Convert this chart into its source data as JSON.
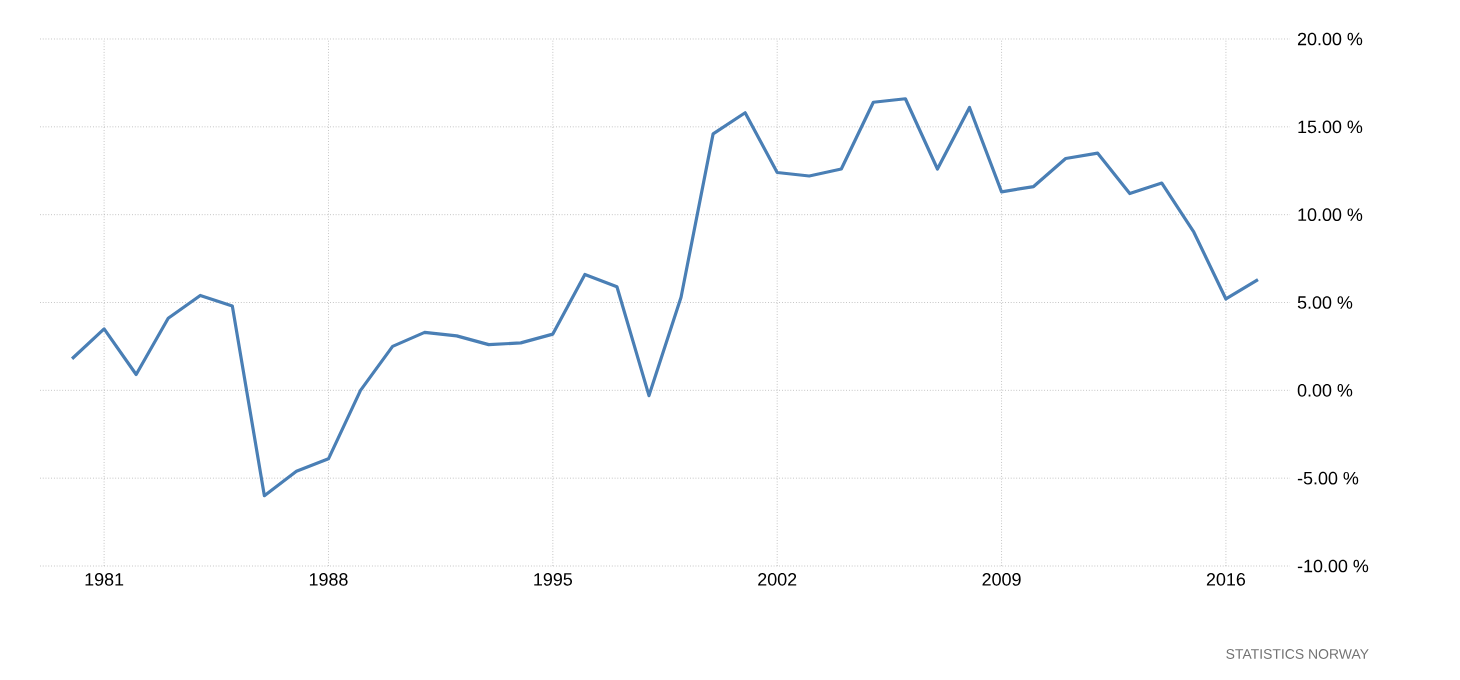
{
  "chart_data": {
    "type": "line",
    "x": [
      1980,
      1981,
      1982,
      1983,
      1984,
      1985,
      1986,
      1987,
      1988,
      1989,
      1990,
      1991,
      1992,
      1993,
      1994,
      1995,
      1996,
      1997,
      1998,
      1999,
      2000,
      2001,
      2002,
      2003,
      2004,
      2005,
      2006,
      2007,
      2008,
      2009,
      2010,
      2011,
      2012,
      2013,
      2014,
      2015,
      2016,
      2017
    ],
    "values": [
      1.8,
      3.5,
      0.9,
      4.1,
      5.4,
      4.8,
      -6.0,
      -4.6,
      -3.9,
      0.0,
      2.5,
      3.3,
      3.1,
      2.6,
      2.7,
      3.2,
      6.6,
      5.9,
      -0.3,
      5.3,
      14.6,
      15.8,
      12.4,
      12.2,
      12.6,
      16.4,
      16.6,
      12.6,
      16.1,
      11.3,
      11.6,
      13.2,
      13.5,
      11.2,
      11.8,
      9.0,
      5.2,
      6.3
    ],
    "color": "#4a7fb5",
    "xlim": [
      1979,
      2018
    ],
    "xticks": [
      1981,
      1988,
      1995,
      2002,
      2009,
      2016
    ],
    "ylim": [
      -10,
      20
    ],
    "yticks": [
      {
        "value": -10,
        "label": "-10.00 %"
      },
      {
        "value": -5,
        "label": "-5.00 %"
      },
      {
        "value": 0,
        "label": "0.00 %"
      },
      {
        "value": 5,
        "label": "5.00 %"
      },
      {
        "value": 10,
        "label": "10.00 %"
      },
      {
        "value": 15,
        "label": "15.00 %"
      },
      {
        "value": 20,
        "label": "20.00 %"
      }
    ],
    "grid": true,
    "marker": "none",
    "line_style": "solid",
    "annotations": [
      "STATISTICS NORWAY"
    ]
  }
}
